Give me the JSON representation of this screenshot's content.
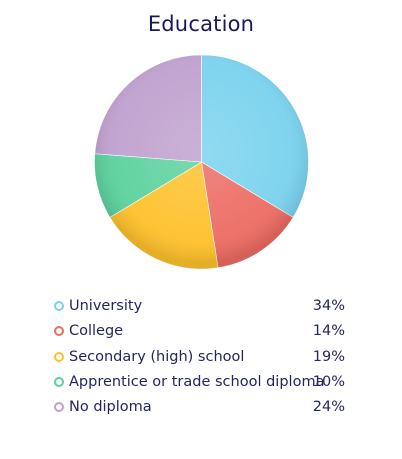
{
  "chart_data": {
    "type": "pie",
    "title": "Education",
    "categories": [
      "University",
      "College",
      "Secondary (high) school",
      "Apprentice or trade school diploma",
      "No diploma"
    ],
    "values": [
      34,
      14,
      19,
      10,
      24
    ],
    "value_labels": [
      "34%",
      "14%",
      "19%",
      "10%",
      "24%"
    ],
    "colors": [
      "#79d2ee",
      "#ec6b62",
      "#fec12b",
      "#5bd19d",
      "#bfa0ce"
    ],
    "legend_position": "bottom",
    "start": "top",
    "direction": "clockwise"
  }
}
